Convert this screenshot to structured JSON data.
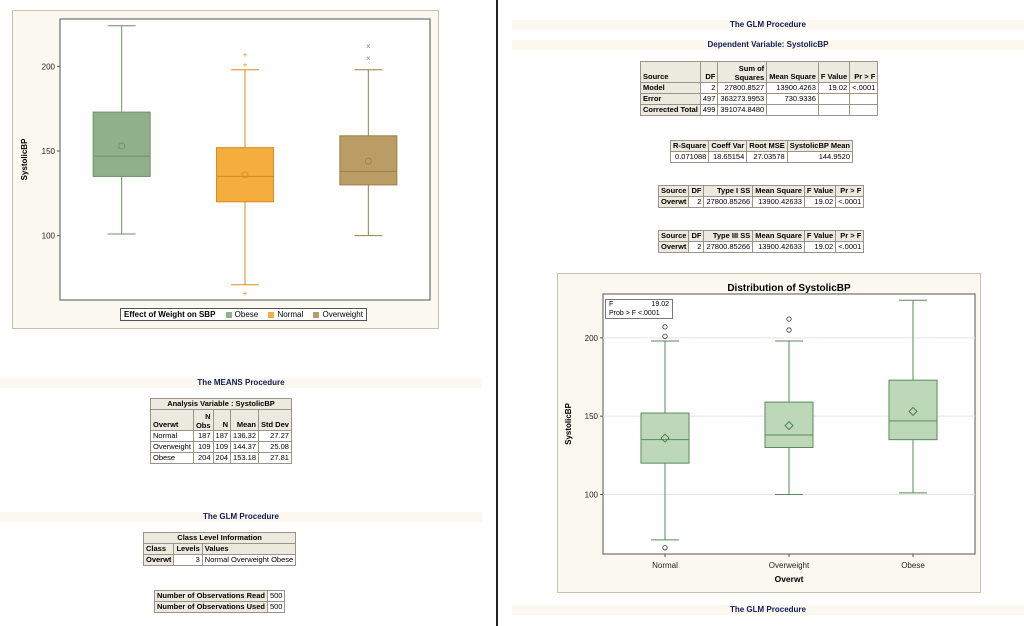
{
  "colors": {
    "obese": "#8fb08a",
    "normal": "#f5ad3d",
    "overweight": "#ba9d65",
    "right_box": "#bcd8b8",
    "band": "#fbf8ef",
    "title_text": "#111a5a"
  },
  "left_chart": {
    "ylabel": "SystolicBP",
    "y_ticks": [
      "200",
      "150",
      "100"
    ],
    "legend_title": "Effect of Weight on SBP",
    "legend_items": [
      "Obese",
      "Normal",
      "Overweight"
    ]
  },
  "means": {
    "band_title": "The MEANS Procedure",
    "caption": "Analysis Variable : SystolicBP",
    "headers": [
      "Overwt",
      "N Obs",
      "N",
      "Mean",
      "Std Dev"
    ],
    "rows": [
      [
        "Normal",
        "187",
        "187",
        "136.32",
        "27.27"
      ],
      [
        "Overweight",
        "109",
        "109",
        "144.37",
        "25.08"
      ],
      [
        "Obese",
        "204",
        "204",
        "153.18",
        "27.81"
      ]
    ]
  },
  "glm_left": {
    "band_title": "The GLM Procedure",
    "class_caption": "Class Level Information",
    "class_headers": [
      "Class",
      "Levels",
      "Values"
    ],
    "class_row": [
      "Overwt",
      "3",
      "Normal Overweight Obese"
    ],
    "obs": [
      [
        "Number of Observations Read",
        "500"
      ],
      [
        "Number of Observations Used",
        "500"
      ]
    ]
  },
  "glm_right": {
    "band_title": "The GLM Procedure",
    "dep_var": "Dependent Variable: SystolicBP",
    "anova_headers": [
      "Source",
      "DF",
      "Sum of Squares",
      "Mean Square",
      "F Value",
      "Pr > F"
    ],
    "anova_rows": [
      [
        "Model",
        "2",
        "27800.8527",
        "13900.4263",
        "19.02",
        "<.0001"
      ],
      [
        "Error",
        "497",
        "363273.9953",
        "730.9336",
        "",
        ""
      ],
      [
        "Corrected Total",
        "499",
        "391074.8480",
        "",
        "",
        ""
      ]
    ],
    "fit_headers": [
      "R-Square",
      "Coeff Var",
      "Root MSE",
      "SystolicBP Mean"
    ],
    "fit_row": [
      "0.071088",
      "18.65154",
      "27.03578",
      "144.9520"
    ],
    "type1_headers": [
      "Source",
      "DF",
      "Type I SS",
      "Mean Square",
      "F Value",
      "Pr > F"
    ],
    "type1_row": [
      "Overwt",
      "2",
      "27800.85266",
      "13900.42633",
      "19.02",
      "<.0001"
    ],
    "type3_headers": [
      "Source",
      "DF",
      "Type III SS",
      "Mean Square",
      "F Value",
      "Pr > F"
    ],
    "type3_row": [
      "Overwt",
      "2",
      "27800.85266",
      "13900.42633",
      "19.02",
      "<.0001"
    ],
    "bottom_band": "The GLM Procedure"
  },
  "right_chart": {
    "title": "Distribution of SystolicBP",
    "ylabel": "SystolicBP",
    "xlabel": "Overwt",
    "y_ticks": [
      "200",
      "150",
      "100"
    ],
    "categories": [
      "Normal",
      "Overweight",
      "Obese"
    ],
    "stat_f_label": "F",
    "stat_f_value": "19.02",
    "stat_p_label": "Prob > F",
    "stat_p_value": "<.0001"
  },
  "chart_data": [
    {
      "type": "box",
      "ylabel": "SystolicBP",
      "ylim": [
        62,
        228
      ],
      "categories": [
        "Obese",
        "Normal",
        "Overweight"
      ],
      "series": [
        {
          "name": "Obese",
          "q1": 135,
          "median": 147,
          "q3": 173,
          "mean": 153,
          "whisker_low": 101,
          "whisker_high": 224,
          "outliers": []
        },
        {
          "name": "Normal",
          "q1": 120,
          "median": 135,
          "q3": 152,
          "mean": 136,
          "whisker_low": 71,
          "whisker_high": 198,
          "outliers": [
            66,
            201,
            207
          ]
        },
        {
          "name": "Overweight",
          "q1": 130,
          "median": 138,
          "q3": 159,
          "mean": 144,
          "whisker_low": 100,
          "whisker_high": 198,
          "outliers": [
            205,
            212
          ]
        }
      ]
    },
    {
      "type": "box",
      "title": "Distribution of SystolicBP",
      "xlabel": "Overwt",
      "ylabel": "SystolicBP",
      "ylim": [
        62,
        228
      ],
      "categories": [
        "Normal",
        "Overweight",
        "Obese"
      ],
      "series": [
        {
          "name": "Normal",
          "q1": 120,
          "median": 135,
          "q3": 152,
          "mean": 136,
          "whisker_low": 71,
          "whisker_high": 198,
          "outliers": [
            66,
            201,
            207
          ]
        },
        {
          "name": "Overweight",
          "q1": 130,
          "median": 138,
          "q3": 159,
          "mean": 144,
          "whisker_low": 100,
          "whisker_high": 198,
          "outliers": [
            205,
            212
          ]
        },
        {
          "name": "Obese",
          "q1": 135,
          "median": 147,
          "q3": 173,
          "mean": 153,
          "whisker_low": 101,
          "whisker_high": 224,
          "outliers": []
        }
      ]
    }
  ]
}
